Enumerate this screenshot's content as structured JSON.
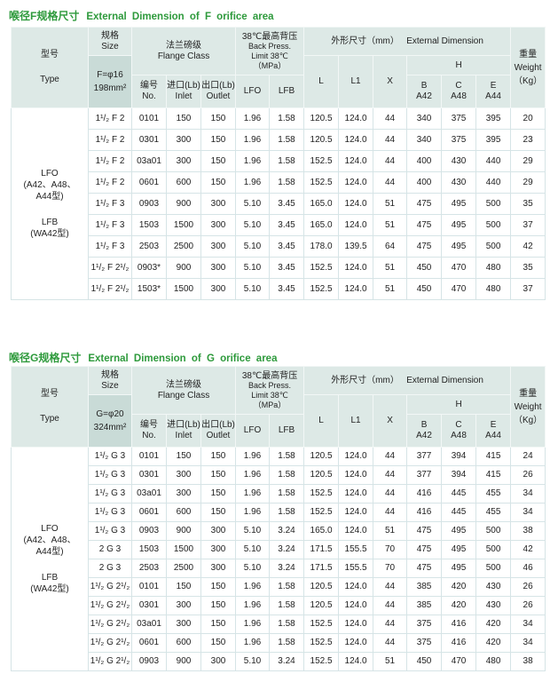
{
  "headers": {
    "type_cn": "型号",
    "type_en": "Type",
    "size_cn": "规格",
    "size_en": "Size",
    "flange_cn": "法兰磅级",
    "flange_en": "Flange Class",
    "bp_1": "38℃最高背压",
    "bp_2": "Back Press.",
    "bp_3": "Limit 38℃",
    "bp_4": "（MPa）",
    "ext_cn": "外形尺寸（mm）",
    "ext_en": "External Dimension",
    "weight_cn": "重量",
    "weight_en": "Weight",
    "weight_unit": "（Kg）",
    "no_cn": "编号",
    "no_en": "No.",
    "inlet_cn": "进口(Lb)",
    "inlet_en": "Inlet",
    "outlet_cn": "出口(Lb)",
    "outlet_en": "Outlet",
    "lfo": "LFO",
    "lfb": "LFB",
    "l": "L",
    "l1": "L1",
    "x": "X",
    "h": "H",
    "b": "B",
    "b2": "A42",
    "c": "C",
    "c2": "A48",
    "e": "E",
    "e2": "A44"
  },
  "type_label": {
    "lfo": "LFO",
    "lfo_models": "(A42、A48、A44型)",
    "lfb": "LFB",
    "lfb_models": "(WA42型)"
  },
  "tables": [
    {
      "title_cn": "喉径F规格尺寸",
      "title_en": "External Dimension of F orifice area",
      "size_1": "F=φ16",
      "size_2": "198mm²",
      "rows": [
        [
          "1¹/₂ F 2",
          "0101",
          "150",
          "150",
          "1.96",
          "1.58",
          "120.5",
          "124.0",
          "44",
          "340",
          "375",
          "395",
          "20"
        ],
        [
          "1¹/₂ F 2",
          "0301",
          "300",
          "150",
          "1.96",
          "1.58",
          "120.5",
          "124.0",
          "44",
          "340",
          "375",
          "395",
          "23"
        ],
        [
          "1¹/₂ F 2",
          "03a01",
          "300",
          "150",
          "1.96",
          "1.58",
          "152.5",
          "124.0",
          "44",
          "400",
          "430",
          "440",
          "29"
        ],
        [
          "1¹/₂ F 2",
          "0601",
          "600",
          "150",
          "1.96",
          "1.58",
          "152.5",
          "124.0",
          "44",
          "400",
          "430",
          "440",
          "29"
        ],
        [
          "1¹/₂ F 3",
          "0903",
          "900",
          "300",
          "5.10",
          "3.45",
          "165.0",
          "124.0",
          "51",
          "475",
          "495",
          "500",
          "35"
        ],
        [
          "1¹/₂ F 3",
          "1503",
          "1500",
          "300",
          "5.10",
          "3.45",
          "165.0",
          "124.0",
          "51",
          "475",
          "495",
          "500",
          "37"
        ],
        [
          "1¹/₂ F 3",
          "2503",
          "2500",
          "300",
          "5.10",
          "3.45",
          "178.0",
          "139.5",
          "64",
          "475",
          "495",
          "500",
          "42"
        ],
        [
          "1¹/₂ F 2¹/₂",
          "0903*",
          "900",
          "300",
          "5.10",
          "3.45",
          "152.5",
          "124.0",
          "51",
          "450",
          "470",
          "480",
          "35"
        ],
        [
          "1¹/₂ F 2¹/₂",
          "1503*",
          "1500",
          "300",
          "5.10",
          "3.45",
          "152.5",
          "124.0",
          "51",
          "450",
          "470",
          "480",
          "37"
        ]
      ]
    },
    {
      "title_cn": "喉径G规格尺寸",
      "title_en": "External Dimension of G orifice area",
      "size_1": "G=φ20",
      "size_2": "324mm²",
      "rows": [
        [
          "1¹/₂ G 3",
          "0101",
          "150",
          "150",
          "1.96",
          "1.58",
          "120.5",
          "124.0",
          "44",
          "377",
          "394",
          "415",
          "24"
        ],
        [
          "1¹/₂ G 3",
          "0301",
          "300",
          "150",
          "1.96",
          "1.58",
          "120.5",
          "124.0",
          "44",
          "377",
          "394",
          "415",
          "26"
        ],
        [
          "1¹/₂ G 3",
          "03a01",
          "300",
          "150",
          "1.96",
          "1.58",
          "152.5",
          "124.0",
          "44",
          "416",
          "445",
          "455",
          "34"
        ],
        [
          "1¹/₂ G 3",
          "0601",
          "600",
          "150",
          "1.96",
          "1.58",
          "152.5",
          "124.0",
          "44",
          "416",
          "445",
          "455",
          "34"
        ],
        [
          "1¹/₂ G 3",
          "0903",
          "900",
          "300",
          "5.10",
          "3.24",
          "165.0",
          "124.0",
          "51",
          "475",
          "495",
          "500",
          "38"
        ],
        [
          "2 G 3",
          "1503",
          "1500",
          "300",
          "5.10",
          "3.24",
          "171.5",
          "155.5",
          "70",
          "475",
          "495",
          "500",
          "42"
        ],
        [
          "2 G 3",
          "2503",
          "2500",
          "300",
          "5.10",
          "3.24",
          "171.5",
          "155.5",
          "70",
          "475",
          "495",
          "500",
          "46"
        ],
        [
          "1¹/₂ G 2¹/₂",
          "0101",
          "150",
          "150",
          "1.96",
          "1.58",
          "120.5",
          "124.0",
          "44",
          "385",
          "420",
          "430",
          "26"
        ],
        [
          "1¹/₂ G 2¹/₂",
          "0301",
          "300",
          "150",
          "1.96",
          "1.58",
          "120.5",
          "124.0",
          "44",
          "385",
          "420",
          "430",
          "26"
        ],
        [
          "1¹/₂ G 2¹/₂",
          "03a01",
          "300",
          "150",
          "1.96",
          "1.58",
          "152.5",
          "124.0",
          "44",
          "375",
          "416",
          "420",
          "34"
        ],
        [
          "1¹/₂ G 2¹/₂",
          "0601",
          "600",
          "150",
          "1.96",
          "1.58",
          "152.5",
          "124.0",
          "44",
          "375",
          "416",
          "420",
          "34"
        ],
        [
          "1¹/₂ G 2¹/₂",
          "0903",
          "900",
          "300",
          "5.10",
          "3.24",
          "152.5",
          "124.0",
          "51",
          "450",
          "470",
          "480",
          "38"
        ]
      ]
    }
  ]
}
